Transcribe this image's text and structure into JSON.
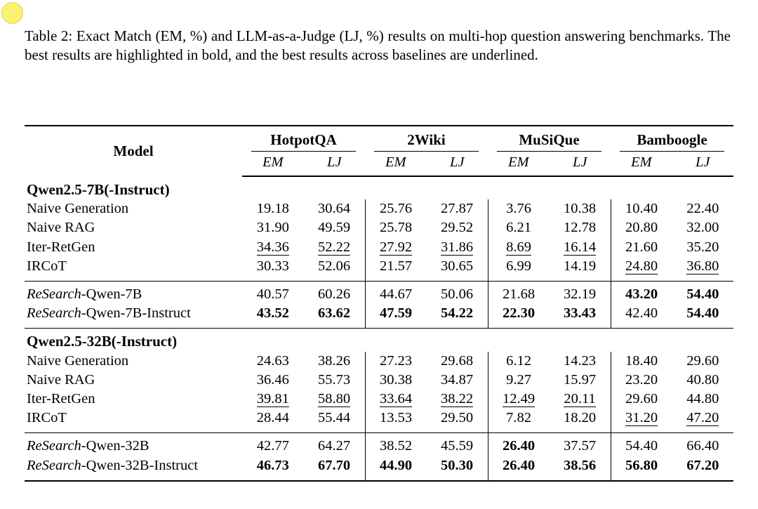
{
  "decoration": {
    "circle_fill": "#f8f46e",
    "circle_border": "#d9d261"
  },
  "caption": {
    "text": "Table 2: Exact Match (EM, %) and LLM-as-a-Judge (LJ, %) results on multi-hop question answering benchmarks. The best results are highlighted in bold, and the best results across baselines are underlined."
  },
  "table": {
    "model_header": "Model",
    "groups": [
      {
        "name": "HotpotQA",
        "sub": [
          "EM",
          "LJ"
        ]
      },
      {
        "name": "2Wiki",
        "sub": [
          "EM",
          "LJ"
        ]
      },
      {
        "name": "MuSiQue",
        "sub": [
          "EM",
          "LJ"
        ]
      },
      {
        "name": "Bamboogle",
        "sub": [
          "EM",
          "LJ"
        ]
      }
    ],
    "style_codes": {
      "n": "normal",
      "b": "bold (best result)",
      "u": "underlined (best across baselines)"
    },
    "blocks": [
      {
        "section_title": "Qwen2.5-7B(-Instruct)",
        "rows": [
          {
            "label_italic": "",
            "label": "Naive Generation",
            "cells": [
              {
                "v": "19.18",
                "s": "n"
              },
              {
                "v": "30.64",
                "s": "n"
              },
              {
                "v": "25.76",
                "s": "n"
              },
              {
                "v": "27.87",
                "s": "n"
              },
              {
                "v": "3.76",
                "s": "n"
              },
              {
                "v": "10.38",
                "s": "n"
              },
              {
                "v": "10.40",
                "s": "n"
              },
              {
                "v": "22.40",
                "s": "n"
              }
            ]
          },
          {
            "label_italic": "",
            "label": "Naive RAG",
            "cells": [
              {
                "v": "31.90",
                "s": "n"
              },
              {
                "v": "49.59",
                "s": "n"
              },
              {
                "v": "25.78",
                "s": "n"
              },
              {
                "v": "29.52",
                "s": "n"
              },
              {
                "v": "6.21",
                "s": "n"
              },
              {
                "v": "12.78",
                "s": "n"
              },
              {
                "v": "20.80",
                "s": "n"
              },
              {
                "v": "32.00",
                "s": "n"
              }
            ]
          },
          {
            "label_italic": "",
            "label": "Iter-RetGen",
            "cells": [
              {
                "v": "34.36",
                "s": "u"
              },
              {
                "v": "52.22",
                "s": "u"
              },
              {
                "v": "27.92",
                "s": "u"
              },
              {
                "v": "31.86",
                "s": "u"
              },
              {
                "v": "8.69",
                "s": "u"
              },
              {
                "v": "16.14",
                "s": "u"
              },
              {
                "v": "21.60",
                "s": "n"
              },
              {
                "v": "35.20",
                "s": "n"
              }
            ]
          },
          {
            "label_italic": "",
            "label": "IRCoT",
            "cells": [
              {
                "v": "30.33",
                "s": "n"
              },
              {
                "v": "52.06",
                "s": "n"
              },
              {
                "v": "21.57",
                "s": "n"
              },
              {
                "v": "30.65",
                "s": "n"
              },
              {
                "v": "6.99",
                "s": "n"
              },
              {
                "v": "14.19",
                "s": "n"
              },
              {
                "v": "24.80",
                "s": "u"
              },
              {
                "v": "36.80",
                "s": "u"
              }
            ]
          }
        ]
      },
      {
        "section_title": null,
        "rows": [
          {
            "label_italic": "ReSearch",
            "label": "-Qwen-7B",
            "cells": [
              {
                "v": "40.57",
                "s": "n"
              },
              {
                "v": "60.26",
                "s": "n"
              },
              {
                "v": "44.67",
                "s": "n"
              },
              {
                "v": "50.06",
                "s": "n"
              },
              {
                "v": "21.68",
                "s": "n"
              },
              {
                "v": "32.19",
                "s": "n"
              },
              {
                "v": "43.20",
                "s": "b"
              },
              {
                "v": "54.40",
                "s": "b"
              }
            ]
          },
          {
            "label_italic": "ReSearch",
            "label": "-Qwen-7B-Instruct",
            "cells": [
              {
                "v": "43.52",
                "s": "b"
              },
              {
                "v": "63.62",
                "s": "b"
              },
              {
                "v": "47.59",
                "s": "b"
              },
              {
                "v": "54.22",
                "s": "b"
              },
              {
                "v": "22.30",
                "s": "b"
              },
              {
                "v": "33.43",
                "s": "b"
              },
              {
                "v": "42.40",
                "s": "n"
              },
              {
                "v": "54.40",
                "s": "b"
              }
            ]
          }
        ]
      },
      {
        "section_title": "Qwen2.5-32B(-Instruct)",
        "rows": [
          {
            "label_italic": "",
            "label": "Naive Generation",
            "cells": [
              {
                "v": "24.63",
                "s": "n"
              },
              {
                "v": "38.26",
                "s": "n"
              },
              {
                "v": "27.23",
                "s": "n"
              },
              {
                "v": "29.68",
                "s": "n"
              },
              {
                "v": "6.12",
                "s": "n"
              },
              {
                "v": "14.23",
                "s": "n"
              },
              {
                "v": "18.40",
                "s": "n"
              },
              {
                "v": "29.60",
                "s": "n"
              }
            ]
          },
          {
            "label_italic": "",
            "label": "Naive RAG",
            "cells": [
              {
                "v": "36.46",
                "s": "n"
              },
              {
                "v": "55.73",
                "s": "n"
              },
              {
                "v": "30.38",
                "s": "n"
              },
              {
                "v": "34.87",
                "s": "n"
              },
              {
                "v": "9.27",
                "s": "n"
              },
              {
                "v": "15.97",
                "s": "n"
              },
              {
                "v": "23.20",
                "s": "n"
              },
              {
                "v": "40.80",
                "s": "n"
              }
            ]
          },
          {
            "label_italic": "",
            "label": "Iter-RetGen",
            "cells": [
              {
                "v": "39.81",
                "s": "u"
              },
              {
                "v": "58.80",
                "s": "u"
              },
              {
                "v": "33.64",
                "s": "u"
              },
              {
                "v": "38.22",
                "s": "u"
              },
              {
                "v": "12.49",
                "s": "u"
              },
              {
                "v": "20.11",
                "s": "u"
              },
              {
                "v": "29.60",
                "s": "n"
              },
              {
                "v": "44.80",
                "s": "n"
              }
            ]
          },
          {
            "label_italic": "",
            "label": "IRCoT",
            "cells": [
              {
                "v": "28.44",
                "s": "n"
              },
              {
                "v": "55.44",
                "s": "n"
              },
              {
                "v": "13.53",
                "s": "n"
              },
              {
                "v": "29.50",
                "s": "n"
              },
              {
                "v": "7.82",
                "s": "n"
              },
              {
                "v": "18.20",
                "s": "n"
              },
              {
                "v": "31.20",
                "s": "u"
              },
              {
                "v": "47.20",
                "s": "u"
              }
            ]
          }
        ]
      },
      {
        "section_title": null,
        "rows": [
          {
            "label_italic": "ReSearch",
            "label": "-Qwen-32B",
            "cells": [
              {
                "v": "42.77",
                "s": "n"
              },
              {
                "v": "64.27",
                "s": "n"
              },
              {
                "v": "38.52",
                "s": "n"
              },
              {
                "v": "45.59",
                "s": "n"
              },
              {
                "v": "26.40",
                "s": "b"
              },
              {
                "v": "37.57",
                "s": "n"
              },
              {
                "v": "54.40",
                "s": "n"
              },
              {
                "v": "66.40",
                "s": "n"
              }
            ]
          },
          {
            "label_italic": "ReSearch",
            "label": "-Qwen-32B-Instruct",
            "cells": [
              {
                "v": "46.73",
                "s": "b"
              },
              {
                "v": "67.70",
                "s": "b"
              },
              {
                "v": "44.90",
                "s": "b"
              },
              {
                "v": "50.30",
                "s": "b"
              },
              {
                "v": "26.40",
                "s": "b"
              },
              {
                "v": "38.56",
                "s": "b"
              },
              {
                "v": "56.80",
                "s": "b"
              },
              {
                "v": "67.20",
                "s": "b"
              }
            ]
          }
        ]
      }
    ]
  }
}
